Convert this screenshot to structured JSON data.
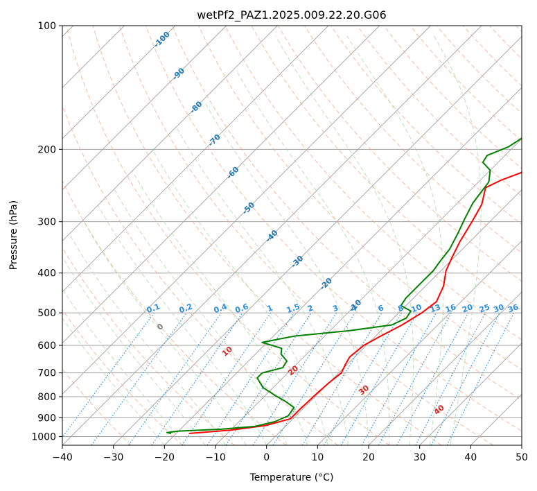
{
  "chart_data": {
    "type": "line",
    "title": "wetPf2_PAZ1.2025.009.22.20.G06",
    "xlabel": "Temperature (°C)",
    "ylabel": "Pressure (hPa)",
    "xlim": [
      -40,
      50
    ],
    "ylim": [
      1050,
      100
    ],
    "y_scale": "log",
    "xticks": [
      "−40",
      "−30",
      "−20",
      "−10",
      "0",
      "10",
      "20",
      "30",
      "40",
      "50"
    ],
    "yticks": [
      "100",
      "200",
      "300",
      "400",
      "500",
      "600",
      "700",
      "800",
      "900",
      "1000"
    ],
    "grid": true,
    "series": [
      {
        "color": "#ff0000",
        "points": [
          [
            -17.5,
            983
          ],
          [
            -10,
            965
          ],
          [
            -4,
            940
          ],
          [
            -0.5,
            905
          ],
          [
            -0.5,
            860
          ],
          [
            -0.3,
            790
          ],
          [
            0,
            740
          ],
          [
            0.5,
            700
          ],
          [
            -0.3,
            670
          ],
          [
            -1,
            640
          ],
          [
            -0.5,
            600
          ],
          [
            1,
            570
          ],
          [
            3,
            535
          ],
          [
            4.5,
            500
          ],
          [
            5.2,
            470
          ],
          [
            3.5,
            430
          ],
          [
            1,
            395
          ],
          [
            -0.5,
            365
          ],
          [
            -2,
            335
          ],
          [
            -3.5,
            300
          ],
          [
            -5,
            272
          ],
          [
            -7.5,
            248
          ],
          [
            -6,
            238
          ],
          [
            -3.5,
            228
          ],
          [
            -3,
            212
          ],
          [
            -3,
            197
          ],
          [
            -1.5,
            188
          ],
          [
            4,
            178
          ],
          [
            10,
            167
          ],
          [
            14,
            155
          ],
          [
            18,
            143
          ],
          [
            20,
            133
          ],
          [
            21,
            123
          ],
          [
            22,
            115
          ],
          [
            23,
            110
          ],
          [
            24,
            107
          ],
          [
            25.5,
            104
          ],
          [
            26.5,
            101
          ],
          [
            26.8,
            100
          ]
        ]
      },
      {
        "color": "#008000",
        "points": [
          [
            -21,
            983
          ],
          [
            -22,
            978
          ],
          [
            -20,
            970
          ],
          [
            -12,
            960
          ],
          [
            -6,
            945
          ],
          [
            -3,
            920
          ],
          [
            -1.5,
            890
          ],
          [
            -2,
            850
          ],
          [
            -5,
            820
          ],
          [
            -8,
            795
          ],
          [
            -12,
            760
          ],
          [
            -15,
            720
          ],
          [
            -15,
            700
          ],
          [
            -12,
            680
          ],
          [
            -12.5,
            655
          ],
          [
            -15,
            630
          ],
          [
            -16,
            610
          ],
          [
            -21,
            590
          ],
          [
            -16,
            570
          ],
          [
            -6,
            552
          ],
          [
            1,
            535
          ],
          [
            2.5,
            515
          ],
          [
            2,
            495
          ],
          [
            -1,
            480
          ],
          [
            -1.5,
            460
          ],
          [
            -1.5,
            440
          ],
          [
            -1.5,
            420
          ],
          [
            -1.5,
            395
          ],
          [
            -2,
            375
          ],
          [
            -2.5,
            350
          ],
          [
            -4,
            320
          ],
          [
            -5.5,
            295
          ],
          [
            -7,
            270
          ],
          [
            -8,
            240
          ],
          [
            -10,
            225
          ],
          [
            -13,
            215
          ],
          [
            -13.5,
            207
          ],
          [
            -11,
            197
          ],
          [
            -10,
            187
          ],
          [
            -10,
            178
          ],
          [
            -11,
            168
          ],
          [
            -11,
            160
          ],
          [
            -10,
            152
          ],
          [
            -10,
            145
          ],
          [
            -9.5,
            138
          ],
          [
            -8,
            130
          ],
          [
            -6,
            122
          ],
          [
            -5,
            116
          ],
          [
            -4,
            110
          ],
          [
            -3,
            105
          ],
          [
            -2.5,
            100
          ]
        ]
      }
    ],
    "isotherm_labels": [
      "-100",
      "-90",
      "-80",
      "-70",
      "-60",
      "-50",
      "-40",
      "-30",
      "-20",
      "-10"
    ],
    "dry_adiabat_labels": [
      "0",
      "10",
      "20",
      "30",
      "40"
    ],
    "mixing_ratio_labels": [
      "0.1",
      "0.2",
      "0.4",
      "0.6",
      "1",
      "1.5",
      "2",
      "3",
      "4",
      "6",
      "8",
      "10",
      "13",
      "16",
      "20",
      "25",
      "30",
      "36"
    ],
    "colors": {
      "temperature": "#ff0000",
      "dewpoint": "#008000",
      "isotherm": "#a0a0a0",
      "dry_adiabat": "#f4a582",
      "moist_adiabat": "#a6d8a0",
      "mixing_ratio": "#2b8cdd",
      "isotherm_label": "#1f77b4",
      "adiabat_label": "#d62728"
    }
  }
}
